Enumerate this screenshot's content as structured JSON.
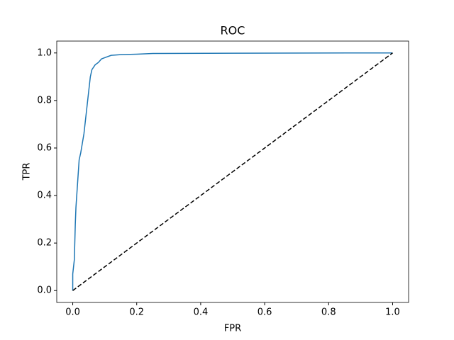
{
  "chart_data": {
    "type": "line",
    "title": "ROC",
    "x_label": "FPR",
    "y_label": "TPR",
    "series": [
      {
        "color": "#1f77b4",
        "dashed": false,
        "x": [
          0,
          0,
          0.005,
          0.008,
          0.01,
          0.015,
          0.02,
          0.025,
          0.03,
          0.035,
          0.04,
          0.045,
          0.05,
          0.055,
          0.06,
          0.07,
          0.08,
          0.09,
          0.1,
          0.12,
          0.15,
          0.2,
          0.25,
          0.5,
          0.86,
          1.0
        ],
        "values": [
          0,
          0.07,
          0.13,
          0.28,
          0.35,
          0.45,
          0.55,
          0.58,
          0.62,
          0.66,
          0.72,
          0.78,
          0.84,
          0.9,
          0.93,
          0.95,
          0.96,
          0.975,
          0.98,
          0.99,
          0.993,
          0.995,
          0.998,
          0.999,
          1.0,
          1.0
        ]
      },
      {
        "color": "#000000",
        "dashed": true,
        "x": [
          0,
          1
        ],
        "values": [
          0,
          1
        ]
      }
    ],
    "xlim": [
      -0.05,
      1.05
    ],
    "ylim": [
      -0.05,
      1.05
    ],
    "xticks": [
      {
        "value": 0,
        "label": "0.0"
      },
      0.2,
      0.4,
      0.6,
      0.8,
      {
        "value": 1,
        "label": "1.0"
      }
    ],
    "yticks": [
      {
        "value": 0,
        "label": "0.0"
      },
      0.2,
      0.4,
      0.6,
      0.8,
      {
        "value": 1,
        "label": "1.0"
      }
    ],
    "grid": false
  }
}
